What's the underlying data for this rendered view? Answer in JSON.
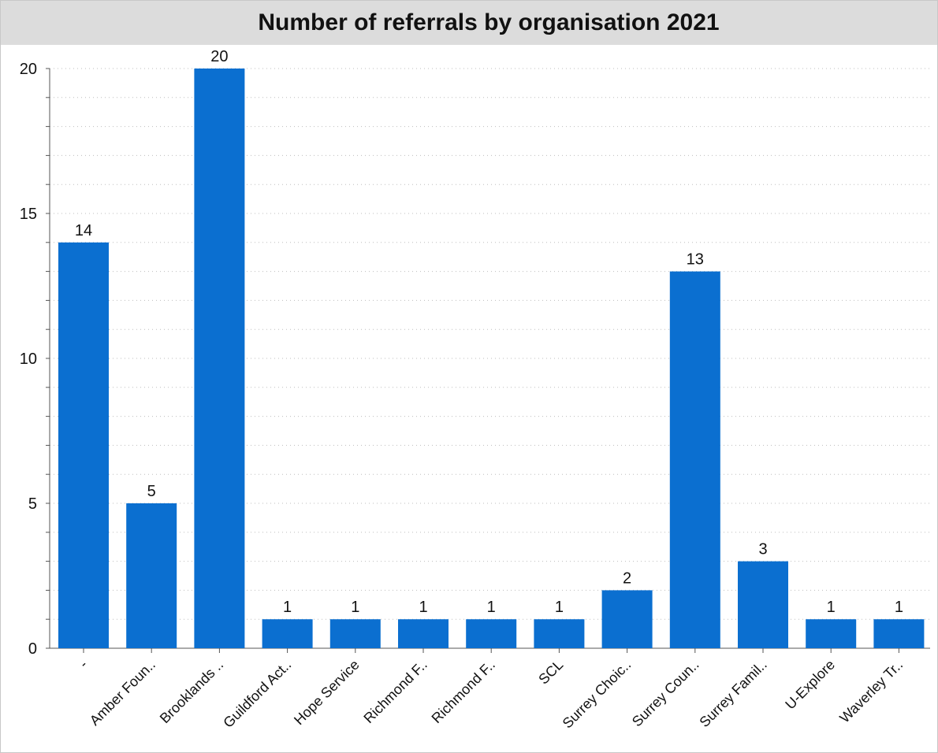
{
  "chart_data": {
    "type": "bar",
    "title": "Number of referrals by organisation 2021",
    "categories": [
      "-",
      "Amber Foun..",
      "Brooklands ..",
      "Guildford Act..",
      "Hope Service",
      "Richmond F..",
      "Richmond F..",
      "SCL",
      "Surrey Choic..",
      "Surrey Coun..",
      "Surrey Famil..",
      "U-Explore",
      "Waverley Tr.."
    ],
    "values": [
      14,
      5,
      20,
      1,
      1,
      1,
      1,
      1,
      2,
      13,
      3,
      1,
      1
    ],
    "y_ticks": [
      "0",
      "5",
      "10",
      "15",
      "20"
    ],
    "ylim": [
      0,
      20
    ],
    "bar_color": "#0b6fd0",
    "grid": true,
    "data_labels": true,
    "xlabel": "",
    "ylabel": ""
  }
}
